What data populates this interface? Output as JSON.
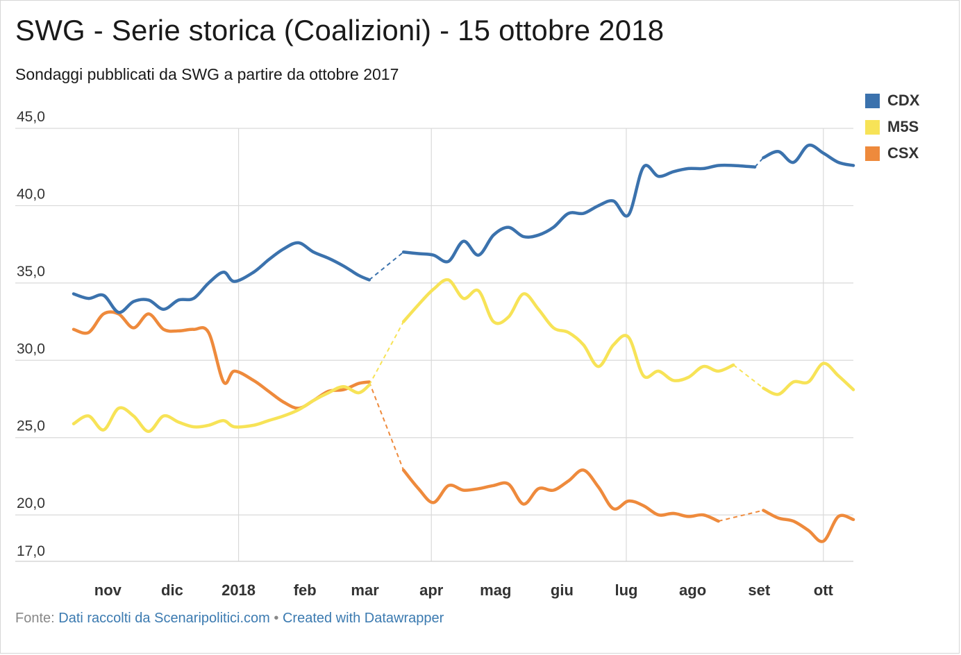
{
  "header": {
    "title": "SWG - Serie storica (Coalizioni) - 15 ottobre 2018",
    "subtitle": "Sondaggi pubblicati da SWG a partire da ottobre 2017"
  },
  "footer": {
    "source_label": "Fonte:",
    "source_link": "Dati raccolti da Scenaripolitici.com",
    "separator": "•",
    "credit_link": "Created with Datawrapper"
  },
  "colors": {
    "CDX": "#3b72ad",
    "M5S": "#f7e357",
    "CSX": "#ee8a3c",
    "grid": "#d9d9d9"
  },
  "chart_data": {
    "type": "line",
    "title": "SWG - Serie storica (Coalizioni) - 15 ottobre 2018",
    "subtitle": "Sondaggi pubblicati da SWG a partire da ottobre 2017",
    "xlabel": "",
    "ylabel": "",
    "x_range": [
      "2017-10-16",
      "2018-10-15"
    ],
    "ylim": [
      17.0,
      45.0
    ],
    "yticks": [
      17.0,
      20.0,
      25.0,
      30.0,
      35.0,
      40.0,
      45.0
    ],
    "ytick_labels": [
      "17,0",
      "20,0",
      "25,0",
      "30,0",
      "35,0",
      "40,0",
      "45,0"
    ],
    "xticks": [
      {
        "label": "nov",
        "date": "2017-11-01"
      },
      {
        "label": "dic",
        "date": "2017-12-01"
      },
      {
        "label": "2018",
        "date": "2018-01-01"
      },
      {
        "label": "feb",
        "date": "2018-02-01"
      },
      {
        "label": "mar",
        "date": "2018-03-01"
      },
      {
        "label": "apr",
        "date": "2018-04-01"
      },
      {
        "label": "mag",
        "date": "2018-05-01"
      },
      {
        "label": "giu",
        "date": "2018-06-01"
      },
      {
        "label": "lug",
        "date": "2018-07-01"
      },
      {
        "label": "ago",
        "date": "2018-08-01"
      },
      {
        "label": "set",
        "date": "2018-09-01"
      },
      {
        "label": "ott",
        "date": "2018-10-01"
      }
    ],
    "grid": true,
    "legend_position": "top-right",
    "series": [
      {
        "name": "CDX",
        "color": "#3b72ad",
        "segments": [
          [
            [
              "2017-10-16",
              34.3
            ],
            [
              "2017-10-23",
              34.0
            ],
            [
              "2017-10-30",
              34.2
            ],
            [
              "2017-11-06",
              33.1
            ],
            [
              "2017-11-13",
              33.8
            ],
            [
              "2017-11-20",
              33.9
            ],
            [
              "2017-11-27",
              33.3
            ],
            [
              "2017-12-04",
              33.9
            ],
            [
              "2017-12-11",
              34.0
            ],
            [
              "2017-12-18",
              35.0
            ],
            [
              "2017-12-25",
              35.7
            ],
            [
              "2017-12-30",
              35.1
            ],
            [
              "2018-01-08",
              35.7
            ],
            [
              "2018-01-15",
              36.5
            ],
            [
              "2018-01-22",
              37.2
            ],
            [
              "2018-01-29",
              37.6
            ],
            [
              "2018-02-05",
              37.0
            ],
            [
              "2018-02-12",
              36.6
            ],
            [
              "2018-02-19",
              36.1
            ],
            [
              "2018-02-26",
              35.5
            ],
            [
              "2018-03-03",
              35.2
            ]
          ],
          [
            [
              "2018-03-19",
              37.0
            ],
            [
              "2018-03-26",
              36.9
            ],
            [
              "2018-04-02",
              36.8
            ],
            [
              "2018-04-09",
              36.4
            ],
            [
              "2018-04-16",
              37.7
            ],
            [
              "2018-04-23",
              36.8
            ],
            [
              "2018-04-30",
              38.1
            ],
            [
              "2018-05-07",
              38.6
            ],
            [
              "2018-05-14",
              38.0
            ],
            [
              "2018-05-21",
              38.1
            ],
            [
              "2018-05-28",
              38.6
            ],
            [
              "2018-06-04",
              39.5
            ],
            [
              "2018-06-11",
              39.5
            ],
            [
              "2018-06-18",
              40.0
            ],
            [
              "2018-06-25",
              40.3
            ],
            [
              "2018-07-02",
              39.4
            ],
            [
              "2018-07-09",
              42.5
            ],
            [
              "2018-07-16",
              41.9
            ],
            [
              "2018-07-23",
              42.2
            ],
            [
              "2018-07-30",
              42.4
            ],
            [
              "2018-08-06",
              42.4
            ],
            [
              "2018-08-13",
              42.6
            ],
            [
              "2018-08-20",
              42.6
            ],
            [
              "2018-08-30",
              42.5
            ]
          ],
          [
            [
              "2018-09-03",
              43.1
            ],
            [
              "2018-09-10",
              43.5
            ],
            [
              "2018-09-17",
              42.8
            ],
            [
              "2018-09-24",
              43.9
            ],
            [
              "2018-10-01",
              43.4
            ],
            [
              "2018-10-08",
              42.8
            ],
            [
              "2018-10-15",
              42.6
            ]
          ]
        ]
      },
      {
        "name": "M5S",
        "color": "#f7e357",
        "segments": [
          [
            [
              "2017-10-16",
              25.9
            ],
            [
              "2017-10-23",
              26.4
            ],
            [
              "2017-10-30",
              25.5
            ],
            [
              "2017-11-06",
              26.9
            ],
            [
              "2017-11-13",
              26.4
            ],
            [
              "2017-11-20",
              25.4
            ],
            [
              "2017-11-27",
              26.4
            ],
            [
              "2017-12-04",
              26.0
            ],
            [
              "2017-12-11",
              25.7
            ],
            [
              "2017-12-18",
              25.8
            ],
            [
              "2017-12-25",
              26.1
            ],
            [
              "2017-12-30",
              25.7
            ],
            [
              "2018-01-08",
              25.8
            ],
            [
              "2018-01-15",
              26.1
            ],
            [
              "2018-01-22",
              26.4
            ],
            [
              "2018-01-29",
              26.8
            ],
            [
              "2018-02-05",
              27.4
            ],
            [
              "2018-02-12",
              27.9
            ],
            [
              "2018-02-19",
              28.3
            ],
            [
              "2018-02-26",
              27.9
            ],
            [
              "2018-03-03",
              28.4
            ]
          ],
          [
            [
              "2018-03-19",
              32.5
            ],
            [
              "2018-03-26",
              33.6
            ],
            [
              "2018-04-02",
              34.6
            ],
            [
              "2018-04-09",
              35.2
            ],
            [
              "2018-04-16",
              34.0
            ],
            [
              "2018-04-23",
              34.5
            ],
            [
              "2018-04-30",
              32.5
            ],
            [
              "2018-05-07",
              32.8
            ],
            [
              "2018-05-14",
              34.3
            ],
            [
              "2018-05-21",
              33.3
            ],
            [
              "2018-05-28",
              32.1
            ],
            [
              "2018-06-04",
              31.8
            ],
            [
              "2018-06-11",
              31.0
            ],
            [
              "2018-06-18",
              29.6
            ],
            [
              "2018-06-25",
              31.0
            ],
            [
              "2018-07-02",
              31.5
            ],
            [
              "2018-07-09",
              29.0
            ],
            [
              "2018-07-16",
              29.3
            ],
            [
              "2018-07-23",
              28.7
            ],
            [
              "2018-07-30",
              28.9
            ],
            [
              "2018-08-06",
              29.6
            ],
            [
              "2018-08-13",
              29.3
            ],
            [
              "2018-08-20",
              29.7
            ]
          ],
          [
            [
              "2018-09-03",
              28.2
            ],
            [
              "2018-09-10",
              27.8
            ],
            [
              "2018-09-17",
              28.6
            ],
            [
              "2018-09-24",
              28.6
            ],
            [
              "2018-10-01",
              29.8
            ],
            [
              "2018-10-08",
              29.0
            ],
            [
              "2018-10-15",
              28.1
            ]
          ]
        ]
      },
      {
        "name": "CSX",
        "color": "#ee8a3c",
        "segments": [
          [
            [
              "2017-10-16",
              32.0
            ],
            [
              "2017-10-23",
              31.8
            ],
            [
              "2017-10-30",
              33.0
            ],
            [
              "2017-11-06",
              33.0
            ],
            [
              "2017-11-13",
              32.1
            ],
            [
              "2017-11-20",
              33.0
            ],
            [
              "2017-11-27",
              32.0
            ],
            [
              "2017-12-04",
              31.9
            ],
            [
              "2017-12-11",
              32.0
            ],
            [
              "2017-12-18",
              31.8
            ],
            [
              "2017-12-25",
              28.6
            ],
            [
              "2017-12-30",
              29.3
            ],
            [
              "2018-01-08",
              28.7
            ],
            [
              "2018-01-15",
              28.0
            ],
            [
              "2018-01-22",
              27.3
            ],
            [
              "2018-01-29",
              26.9
            ],
            [
              "2018-02-05",
              27.4
            ],
            [
              "2018-02-12",
              28.0
            ],
            [
              "2018-02-19",
              28.1
            ],
            [
              "2018-02-26",
              28.5
            ],
            [
              "2018-03-03",
              28.6
            ]
          ],
          [
            [
              "2018-03-19",
              22.9
            ],
            [
              "2018-03-26",
              21.7
            ],
            [
              "2018-04-02",
              20.8
            ],
            [
              "2018-04-09",
              21.9
            ],
            [
              "2018-04-16",
              21.6
            ],
            [
              "2018-04-23",
              21.7
            ],
            [
              "2018-04-30",
              21.9
            ],
            [
              "2018-05-07",
              22.0
            ],
            [
              "2018-05-14",
              20.7
            ],
            [
              "2018-05-21",
              21.7
            ],
            [
              "2018-05-28",
              21.6
            ],
            [
              "2018-06-04",
              22.2
            ],
            [
              "2018-06-11",
              22.9
            ],
            [
              "2018-06-18",
              21.8
            ],
            [
              "2018-06-25",
              20.4
            ],
            [
              "2018-07-02",
              20.9
            ],
            [
              "2018-07-09",
              20.6
            ],
            [
              "2018-07-16",
              20.0
            ],
            [
              "2018-07-23",
              20.1
            ],
            [
              "2018-07-30",
              19.9
            ],
            [
              "2018-08-06",
              20.0
            ],
            [
              "2018-08-13",
              19.6
            ]
          ],
          [
            [
              "2018-09-03",
              20.3
            ],
            [
              "2018-09-10",
              19.8
            ],
            [
              "2018-09-17",
              19.6
            ],
            [
              "2018-09-24",
              19.0
            ],
            [
              "2018-10-01",
              18.3
            ],
            [
              "2018-10-08",
              19.9
            ],
            [
              "2018-10-15",
              19.7
            ]
          ]
        ]
      }
    ]
  }
}
